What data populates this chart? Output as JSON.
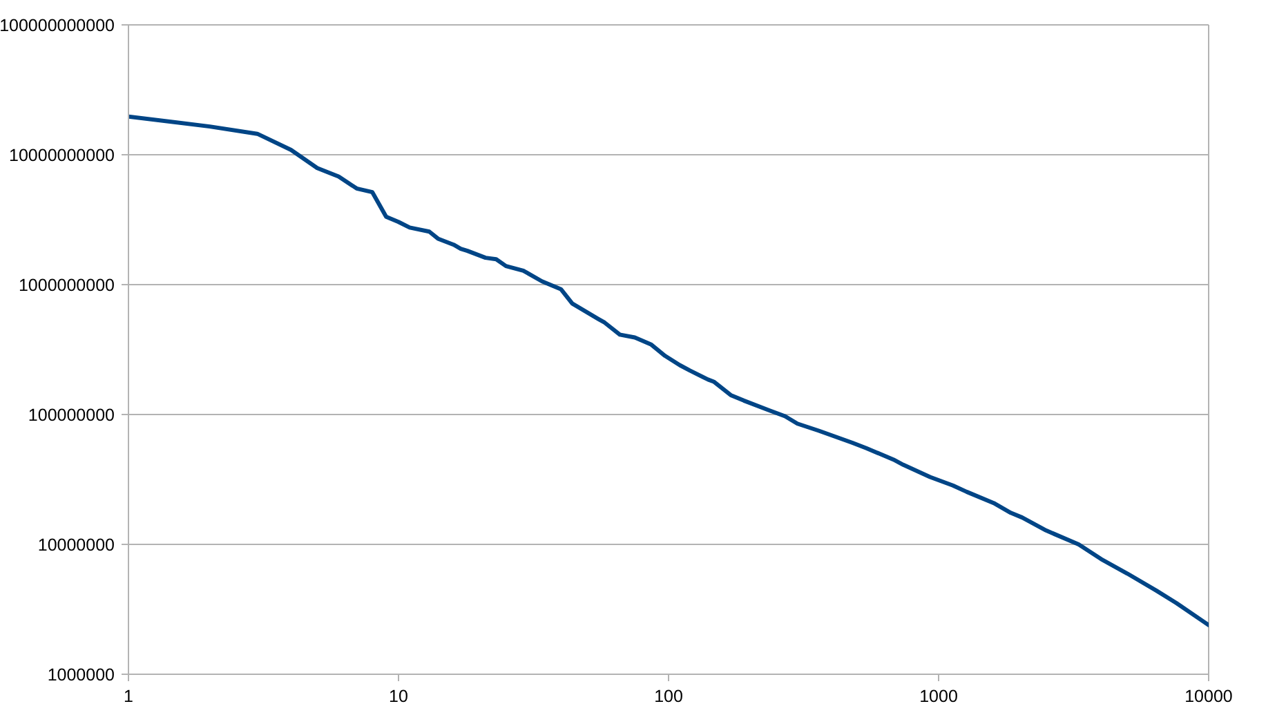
{
  "chart_data": {
    "type": "line",
    "x": [
      1,
      2,
      3,
      4,
      5,
      6,
      7,
      8,
      9,
      10,
      11,
      13,
      14,
      16,
      17,
      18,
      21,
      23,
      25,
      29,
      34,
      40,
      44,
      55,
      58,
      66,
      75,
      86,
      97,
      110,
      120,
      140,
      147,
      170,
      190,
      235,
      270,
      300,
      360,
      480,
      540,
      680,
      740,
      930,
      1130,
      1270,
      1600,
      1850,
      2040,
      2500,
      3300,
      4000,
      5000,
      6400,
      7600,
      10000
    ],
    "values": [
      19700000000.0,
      16500000000.0,
      14500000000.0,
      10900000000.0,
      7900000000.0,
      6800000000.0,
      5500000000.0,
      5150000000.0,
      3330000000.0,
      3040000000.0,
      2750000000.0,
      2560000000.0,
      2260000000.0,
      2030000000.0,
      1890000000.0,
      1820000000.0,
      1610000000.0,
      1570000000.0,
      1390000000.0,
      1280000000.0,
      1060000000.0,
      920000000.0,
      715000000.0,
      543000000.0,
      510000000.0,
      412000000.0,
      392000000.0,
      347000000.0,
      283000000.0,
      240000000.0,
      218000000.0,
      186000000.0,
      179000000.0,
      141000000.0,
      128000000.0,
      108000000.0,
      97000000.0,
      85000000.0,
      75000000.0,
      60500000.0,
      55000000.0,
      45000000.0,
      41000000.0,
      33000000.0,
      28400000.0,
      25400000.0,
      20800000.0,
      17500000.0,
      16100000.0,
      12800000.0,
      10000000.0,
      7700000.0,
      5960000.0,
      4410000.0,
      3530000.0,
      2390000.0
    ],
    "color": "#004586",
    "xlim": [
      1,
      10000
    ],
    "xticks": [
      1,
      10,
      100,
      1000,
      10000
    ],
    "ylim": [
      1000000,
      100000000000
    ],
    "yticks": [
      1000000,
      10000000,
      100000000,
      1000000000,
      10000000000,
      100000000000
    ],
    "log": "xy",
    "grid": "y",
    "marker": "none",
    "line_style": "solid"
  }
}
